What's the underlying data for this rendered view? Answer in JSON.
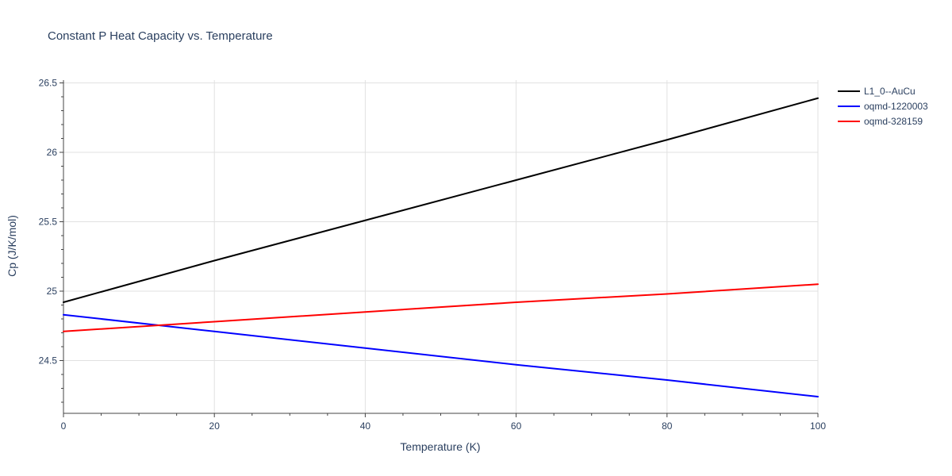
{
  "chart_data": {
    "type": "line",
    "title": "Constant P Heat Capacity vs. Temperature",
    "xlabel": "Temperature (K)",
    "ylabel": "Cp (J/K/mol)",
    "xlim": [
      0,
      100
    ],
    "ylim": [
      24.12,
      26.52
    ],
    "xticks": [
      0,
      20,
      40,
      60,
      80,
      100
    ],
    "xtick_labels": [
      "0",
      "20",
      "40",
      "60",
      "80",
      "100"
    ],
    "yticks": [
      24.5,
      25,
      25.5,
      26,
      26.5
    ],
    "ytick_labels": [
      "24.5",
      "25",
      "25.5",
      "26",
      "26.5"
    ],
    "grid": true,
    "legend_position": "top-right, outside plot",
    "series": [
      {
        "name": "L1_0--AuCu",
        "color": "#000000",
        "x": [
          0,
          20,
          40,
          60,
          80,
          100
        ],
        "y": [
          24.92,
          25.22,
          25.51,
          25.8,
          26.09,
          26.39
        ]
      },
      {
        "name": "oqmd-1220003",
        "color": "#0000ff",
        "x": [
          0,
          20,
          40,
          60,
          80,
          100
        ],
        "y": [
          24.83,
          24.71,
          24.59,
          24.47,
          24.36,
          24.24
        ]
      },
      {
        "name": "oqmd-328159",
        "color": "#ff0000",
        "x": [
          0,
          20,
          40,
          60,
          80,
          100
        ],
        "y": [
          24.71,
          24.78,
          24.85,
          24.92,
          24.98,
          25.05
        ]
      }
    ]
  }
}
